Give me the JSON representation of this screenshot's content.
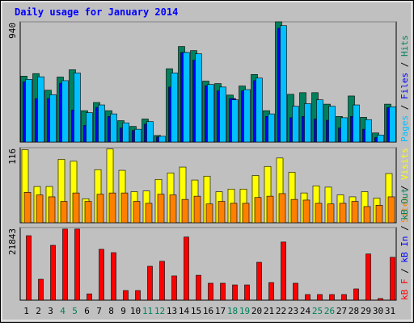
{
  "title": "Daily usage for January 2014",
  "legend_separator": " / ",
  "chart_data": [
    {
      "type": "bar",
      "ylim": [
        0,
        940
      ],
      "yticks": [
        940
      ],
      "series": [
        {
          "name": "Pages",
          "color": "#00c0ff",
          "values": [
            490,
            510,
            370,
            480,
            540,
            230,
            290,
            220,
            150,
            100,
            160,
            45,
            540,
            700,
            690,
            450,
            430,
            330,
            410,
            500,
            220,
            910,
            280,
            300,
            330,
            280,
            190,
            290,
            175,
            55,
            275
          ]
        },
        {
          "name": "Files",
          "color": "#0000ff",
          "values": [
            470,
            340,
            340,
            460,
            250,
            130,
            270,
            200,
            110,
            90,
            140,
            40,
            430,
            700,
            640,
            440,
            400,
            340,
            400,
            480,
            200,
            890,
            190,
            200,
            180,
            170,
            110,
            200,
            100,
            35,
            270
          ]
        },
        {
          "name": "Hits",
          "color": "#00805c",
          "values": [
            515,
            535,
            405,
            508,
            565,
            245,
            309,
            245,
            167,
            122,
            180,
            51,
            573,
            747,
            715,
            476,
            457,
            367,
            438,
            528,
            245,
            940,
            373,
            386,
            386,
            296,
            200,
            360,
            193,
            71,
            296
          ]
        }
      ]
    },
    {
      "type": "bar",
      "ylim": [
        0,
        116
      ],
      "yticks": [
        116
      ],
      "series": [
        {
          "name": "Sites",
          "color": "#ff8000",
          "values": [
            47,
            43,
            40,
            33,
            46,
            33,
            44,
            46,
            46,
            33,
            30,
            44,
            43,
            36,
            41,
            29,
            33,
            30,
            30,
            39,
            41,
            45,
            36,
            35,
            30,
            29,
            30,
            33,
            25,
            27,
            40
          ]
        },
        {
          "name": "Visits",
          "color": "#ffff00",
          "values": [
            113,
            56,
            56,
            98,
            95,
            37,
            82,
            114,
            81,
            48,
            49,
            67,
            77,
            86,
            66,
            72,
            48,
            52,
            52,
            73,
            87,
            100,
            78,
            46,
            57,
            55,
            43,
            40,
            48,
            38,
            76
          ]
        }
      ]
    },
    {
      "type": "bar",
      "ylim": [
        0,
        21843
      ],
      "yticks": [
        21843
      ],
      "categories": [
        "1",
        "2",
        "3",
        "4",
        "5",
        "6",
        "7",
        "8",
        "9",
        "10",
        "11",
        "12",
        "13",
        "14",
        "15",
        "16",
        "17",
        "18",
        "19",
        "20",
        "21",
        "22",
        "23",
        "24",
        "25",
        "26",
        "27",
        "28",
        "29",
        "30",
        "31"
      ],
      "category_colors": [
        "#000000",
        "#000000",
        "#000000",
        "#00805c",
        "#00805c",
        "#000000",
        "#000000",
        "#000000",
        "#000000",
        "#000000",
        "#00805c",
        "#00805c",
        "#000000",
        "#000000",
        "#000000",
        "#000000",
        "#000000",
        "#00805c",
        "#00805c",
        "#000000",
        "#000000",
        "#000000",
        "#000000",
        "#000000",
        "#00805c",
        "#00805c",
        "#000000",
        "#000000",
        "#000000",
        "#000000",
        "#000000"
      ],
      "series": [
        {
          "name": "kB F",
          "color": "#ff0000",
          "values": [
            19400,
            6300,
            16500,
            21400,
            21400,
            1900,
            15300,
            14300,
            2900,
            2900,
            10200,
            11700,
            7300,
            19000,
            7500,
            5100,
            5100,
            4600,
            4600,
            11400,
            5300,
            17500,
            5100,
            1700,
            1700,
            1700,
            1700,
            3400,
            13900,
            500,
            12900
          ]
        },
        {
          "name": "kB In",
          "color": "#0000ff",
          "values": [
            0,
            0,
            0,
            0,
            0,
            0,
            0,
            0,
            0,
            0,
            0,
            0,
            0,
            0,
            0,
            0,
            0,
            0,
            0,
            0,
            0,
            0,
            0,
            0,
            0,
            0,
            0,
            0,
            0,
            0,
            0
          ]
        },
        {
          "name": "kB Out",
          "color": "#00805c",
          "values": [
            0,
            0,
            0,
            0,
            0,
            0,
            0,
            0,
            0,
            0,
            0,
            0,
            0,
            0,
            0,
            0,
            0,
            0,
            0,
            0,
            0,
            0,
            0,
            0,
            0,
            0,
            0,
            0,
            0,
            0,
            0
          ]
        }
      ]
    }
  ]
}
